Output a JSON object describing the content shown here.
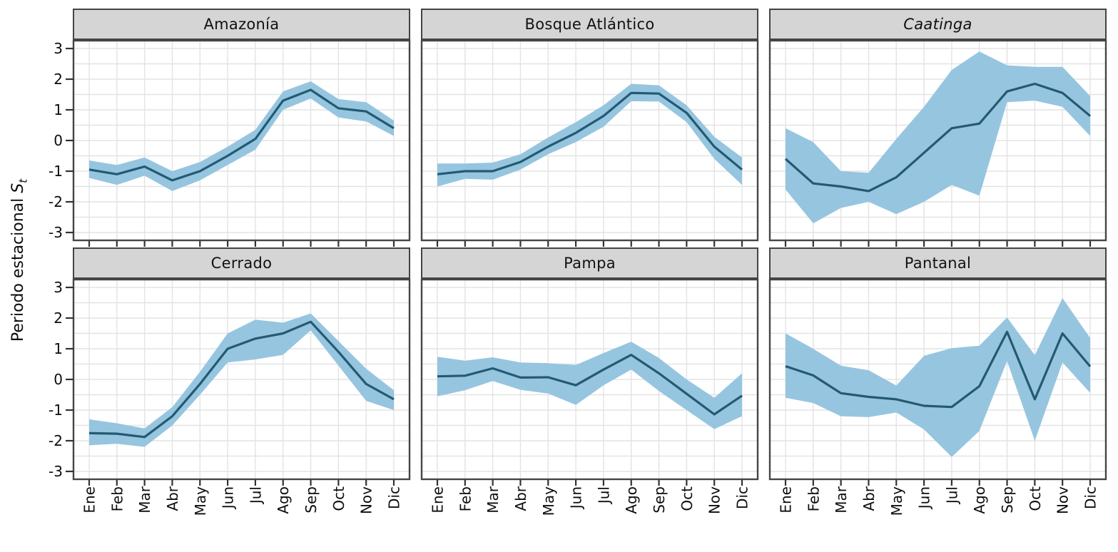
{
  "figure": {
    "background": "#ffffff",
    "ylabel": {
      "text": "Periodo estacional ",
      "var": "S",
      "sub": "t"
    },
    "colors": {
      "ribbon": "#96c5e0",
      "line": "#235a72",
      "grid": "#e3e3e3",
      "panel_border": "#454545",
      "header_bg": "#d5d5d5",
      "header_border": "#444444",
      "tick": "#333333",
      "text": "#0d0d0d"
    }
  },
  "chart_data": {
    "type": "line",
    "description": "Faceted seasonal-period line charts with confidence ribbons, one panel per Brazilian biome",
    "x_categories": [
      "Ene",
      "Feb",
      "Mar",
      "Abr",
      "May",
      "Jun",
      "Jul",
      "Ago",
      "Sep",
      "Oct",
      "Nov",
      "Dic"
    ],
    "ylim": [
      -3,
      3
    ],
    "yticks": [
      3,
      2,
      1,
      0,
      -1,
      -2,
      -3
    ],
    "grid": "horizontal lines every 0.5, vertical line at each month",
    "legend": "none",
    "panels": [
      {
        "title": "Amazonía",
        "title_italic": false,
        "mean": [
          -0.95,
          -1.1,
          -0.85,
          -1.3,
          -1.0,
          -0.5,
          0.05,
          1.3,
          1.65,
          1.05,
          0.95,
          0.4
        ],
        "upper": [
          -0.65,
          -0.8,
          -0.55,
          -1.0,
          -0.7,
          -0.2,
          0.35,
          1.6,
          1.93,
          1.35,
          1.25,
          0.65
        ],
        "lower": [
          -1.22,
          -1.45,
          -1.15,
          -1.65,
          -1.3,
          -0.8,
          -0.3,
          1.0,
          1.37,
          0.75,
          0.62,
          0.15
        ]
      },
      {
        "title": "Bosque Atlántico",
        "title_italic": false,
        "mean": [
          -1.1,
          -1.0,
          -1.0,
          -0.7,
          -0.2,
          0.25,
          0.8,
          1.55,
          1.53,
          0.9,
          -0.2,
          -0.95
        ],
        "upper": [
          -0.75,
          -0.75,
          -0.72,
          -0.45,
          0.1,
          0.6,
          1.15,
          1.85,
          1.8,
          1.15,
          0.12,
          -0.55
        ],
        "lower": [
          -1.5,
          -1.25,
          -1.28,
          -0.95,
          -0.45,
          -0.05,
          0.45,
          1.28,
          1.27,
          0.6,
          -0.6,
          -1.45
        ]
      },
      {
        "title": "Caatinga",
        "title_italic": true,
        "mean": [
          -0.6,
          -1.4,
          -1.5,
          -1.65,
          -1.2,
          -0.4,
          0.4,
          0.55,
          1.6,
          1.85,
          1.55,
          0.8
        ],
        "upper": [
          0.4,
          -0.05,
          -1.0,
          -1.05,
          0.05,
          1.1,
          2.3,
          2.9,
          2.45,
          2.4,
          2.4,
          1.45
        ],
        "lower": [
          -1.6,
          -2.7,
          -2.2,
          -2.0,
          -2.4,
          -2.0,
          -1.45,
          -1.8,
          1.25,
          1.3,
          1.1,
          0.15
        ]
      },
      {
        "title": "Cerrado",
        "title_italic": false,
        "mean": [
          -1.75,
          -1.77,
          -1.88,
          -1.2,
          -0.15,
          1.0,
          1.33,
          1.5,
          1.88,
          0.9,
          -0.15,
          -0.65
        ],
        "upper": [
          -1.3,
          -1.43,
          -1.6,
          -0.9,
          0.25,
          1.5,
          1.95,
          1.85,
          2.15,
          1.25,
          0.35,
          -0.35
        ],
        "lower": [
          -2.15,
          -2.1,
          -2.2,
          -1.5,
          -0.5,
          0.55,
          0.65,
          0.8,
          1.6,
          0.45,
          -0.7,
          -1.0
        ]
      },
      {
        "title": "Pampa",
        "title_italic": false,
        "mean": [
          0.1,
          0.12,
          0.36,
          0.06,
          0.07,
          -0.19,
          0.32,
          0.8,
          0.2,
          -0.47,
          -1.14,
          -0.53
        ],
        "upper": [
          0.74,
          0.61,
          0.72,
          0.55,
          0.53,
          0.47,
          0.86,
          1.23,
          0.7,
          0.0,
          -0.6,
          0.2
        ],
        "lower": [
          -0.55,
          -0.35,
          -0.05,
          -0.34,
          -0.46,
          -0.83,
          -0.19,
          0.32,
          -0.38,
          -1.0,
          -1.62,
          -1.2
        ]
      },
      {
        "title": "Pantanal",
        "title_italic": false,
        "mean": [
          0.43,
          0.13,
          -0.45,
          -0.57,
          -0.65,
          -0.86,
          -0.9,
          -0.22,
          1.55,
          -0.65,
          1.5,
          0.42
        ],
        "upper": [
          1.5,
          1.0,
          0.45,
          0.3,
          -0.2,
          0.77,
          1.02,
          1.1,
          2.02,
          0.79,
          2.65,
          1.35
        ],
        "lower": [
          -0.6,
          -0.77,
          -1.2,
          -1.23,
          -1.08,
          -1.63,
          -2.53,
          -1.68,
          0.6,
          -2.0,
          0.55,
          -0.44
        ]
      }
    ]
  }
}
